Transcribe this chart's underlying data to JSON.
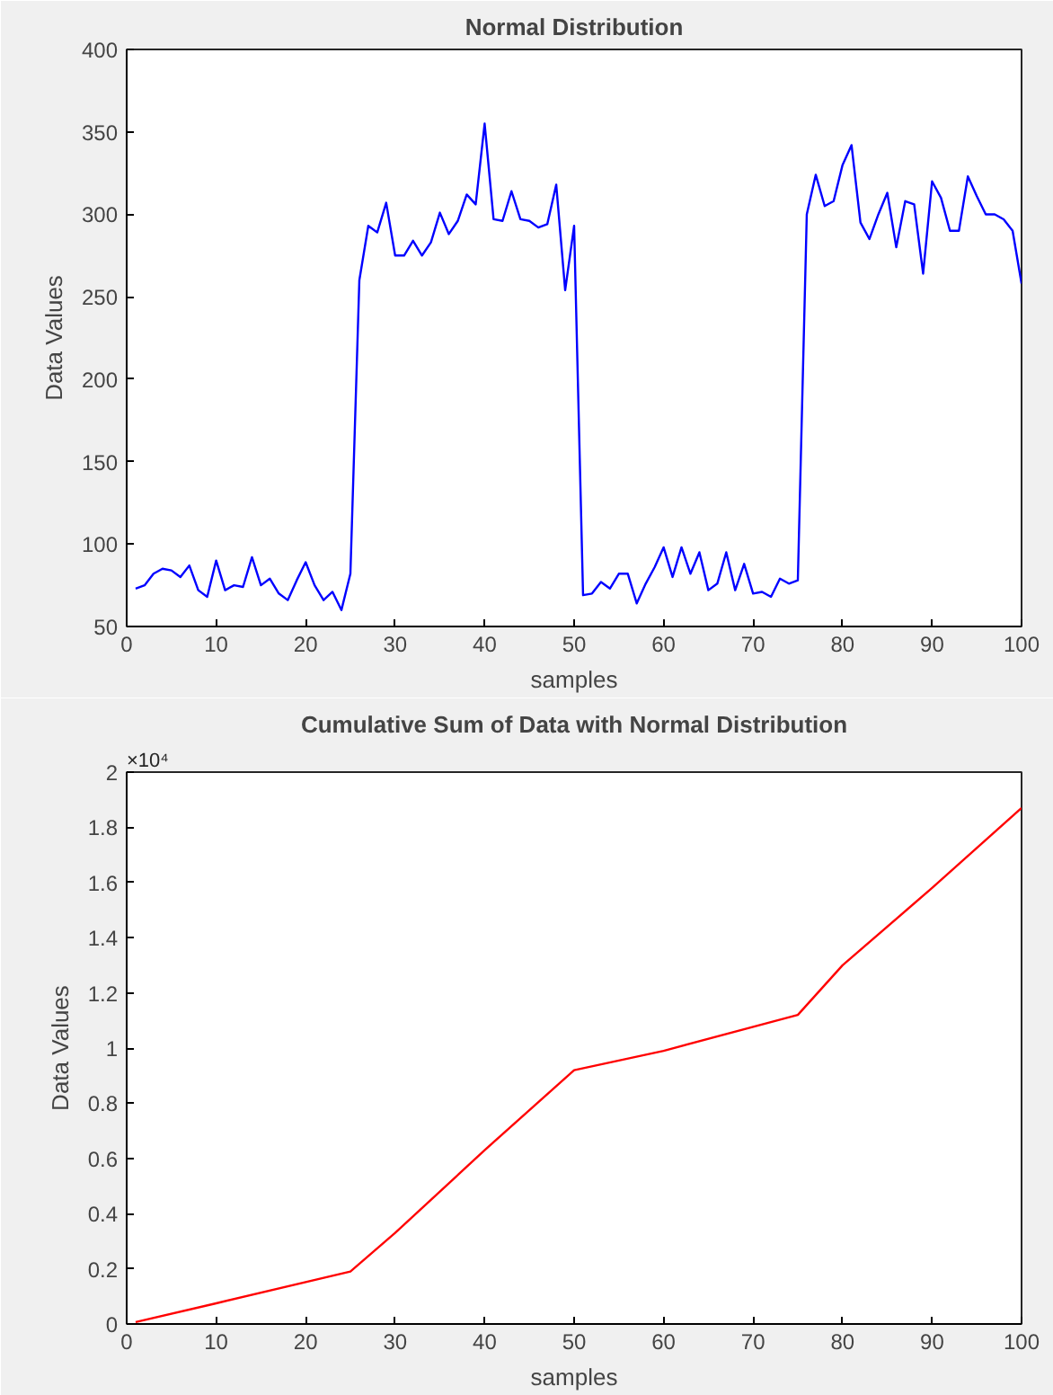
{
  "chart_data": [
    {
      "type": "line",
      "title": "Normal Distribution",
      "xlabel": "samples",
      "ylabel": "Data Values",
      "x": [
        1,
        2,
        3,
        4,
        5,
        6,
        7,
        8,
        9,
        10,
        11,
        12,
        13,
        14,
        15,
        16,
        17,
        18,
        19,
        20,
        21,
        22,
        23,
        24,
        25,
        26,
        27,
        28,
        29,
        30,
        31,
        32,
        33,
        34,
        35,
        36,
        37,
        38,
        39,
        40,
        41,
        42,
        43,
        44,
        45,
        46,
        47,
        48,
        49,
        50,
        51,
        52,
        53,
        54,
        55,
        56,
        57,
        58,
        59,
        60,
        61,
        62,
        63,
        64,
        65,
        66,
        67,
        68,
        69,
        70,
        71,
        72,
        73,
        74,
        75,
        76,
        77,
        78,
        79,
        80,
        81,
        82,
        83,
        84,
        85,
        86,
        87,
        88,
        89,
        90,
        91,
        92,
        93,
        94,
        95,
        96,
        97,
        98,
        99,
        100
      ],
      "series": [
        {
          "color": "#0000ff",
          "values": [
            73,
            75,
            82,
            85,
            84,
            80,
            87,
            72,
            68,
            90,
            72,
            75,
            74,
            92,
            75,
            79,
            70,
            66,
            78,
            89,
            75,
            66,
            71,
            60,
            82,
            260,
            293,
            289,
            307,
            275,
            275,
            284,
            275,
            283,
            301,
            288,
            296,
            312,
            306,
            355,
            297,
            296,
            314,
            297,
            296,
            292,
            294,
            318,
            254,
            293,
            69,
            70,
            77,
            73,
            82,
            82,
            64,
            76,
            86,
            98,
            80,
            98,
            82,
            95,
            72,
            76,
            95,
            72,
            88,
            70,
            71,
            68,
            79,
            76,
            78,
            300,
            324,
            305,
            308,
            330,
            342,
            295,
            285,
            300,
            313,
            280,
            308,
            306,
            264,
            320,
            310,
            290,
            290,
            323,
            311,
            300,
            300,
            297,
            290,
            258
          ]
        }
      ],
      "xlim": [
        0,
        100
      ],
      "xticks": [
        0,
        10,
        20,
        30,
        40,
        50,
        60,
        70,
        80,
        90,
        100
      ],
      "ylim": [
        50,
        400
      ],
      "yticks": [
        50,
        100,
        150,
        200,
        250,
        300,
        350,
        400
      ],
      "grid": false,
      "line_style": "solid",
      "marker": "none"
    },
    {
      "type": "line",
      "title": "Cumulative Sum of Data with Normal Distribution",
      "xlabel": "samples",
      "ylabel": "Data Values",
      "annotations": [
        "×10⁴"
      ],
      "x": [
        1,
        10,
        25,
        30,
        40,
        50,
        60,
        75,
        80,
        90,
        100
      ],
      "series": [
        {
          "color": "#ff0000",
          "values": [
            0.007,
            0.075,
            0.19,
            0.33,
            0.63,
            0.92,
            0.99,
            1.12,
            1.3,
            1.58,
            1.87
          ]
        }
      ],
      "xlim": [
        0,
        100
      ],
      "xticks": [
        0,
        10,
        20,
        30,
        40,
        50,
        60,
        70,
        80,
        90,
        100
      ],
      "ylim": [
        0,
        2
      ],
      "yticks": [
        0,
        0.2,
        0.4,
        0.6,
        0.8,
        1,
        1.2,
        1.4,
        1.6,
        1.8,
        2
      ],
      "grid": false,
      "line_style": "solid",
      "marker": "none"
    }
  ]
}
